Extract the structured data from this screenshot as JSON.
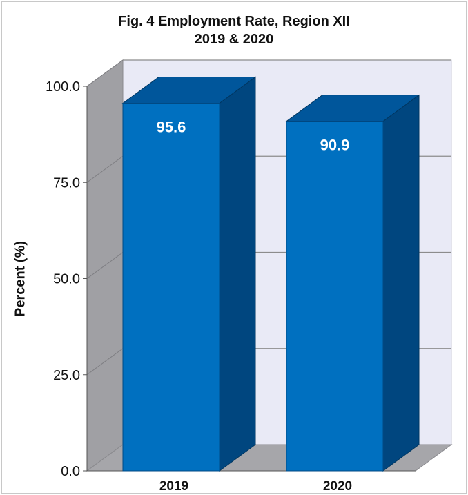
{
  "chart_data": {
    "type": "bar",
    "title": "Fig. 4 Employment Rate, Region XII",
    "subtitle": "2019 & 2020",
    "xlabel": "",
    "ylabel": "Percent (%)",
    "categories": [
      "2019",
      "2020"
    ],
    "values": [
      95.6,
      90.9
    ],
    "data_labels": [
      "95.6",
      "90.9"
    ],
    "ylim": [
      0,
      100
    ],
    "yticks": [
      0,
      25,
      50,
      75,
      100
    ],
    "ytick_labels": [
      "0.0",
      "25.0",
      "50.0",
      "75.0",
      "100.0"
    ],
    "grid": true,
    "legend": "none",
    "style": "3d",
    "colors": {
      "bar_front": "#0070c0",
      "bar_top": "#00569b",
      "bar_side": "#00467f",
      "back_wall": "#e9eaf6",
      "side_wall": "#a0a0a4",
      "floor": "#a6a6aa",
      "gridline": "#8c8c8c"
    }
  }
}
